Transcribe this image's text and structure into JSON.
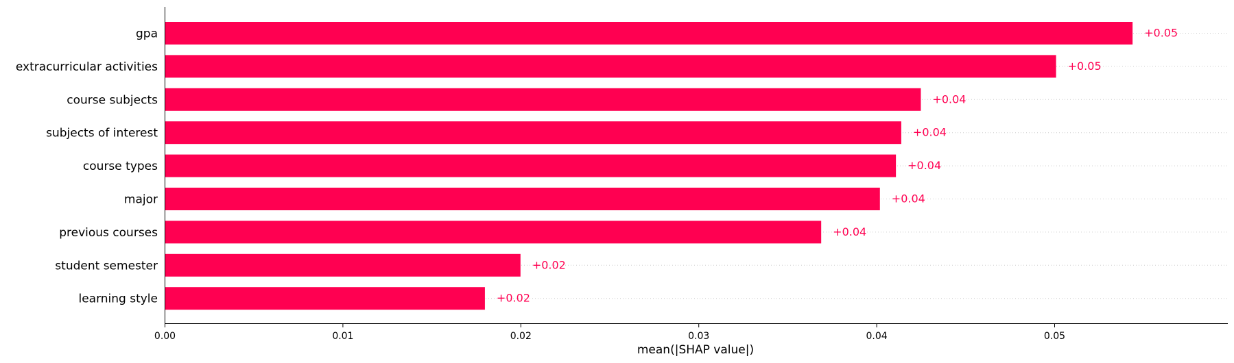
{
  "chart_data": {
    "type": "bar",
    "orientation": "horizontal",
    "categories": [
      "gpa",
      "extracurricular activities",
      "course subjects",
      "subjects of interest",
      "course types",
      "major",
      "previous courses",
      "student semester",
      "learning style"
    ],
    "values": [
      0.0544,
      0.0501,
      0.0425,
      0.0414,
      0.0411,
      0.0402,
      0.0369,
      0.02,
      0.018
    ],
    "value_labels": [
      "+0.05",
      "+0.05",
      "+0.04",
      "+0.04",
      "+0.04",
      "+0.04",
      "+0.04",
      "+0.02",
      "+0.02"
    ],
    "xlabel": "mean(|SHAP value|)",
    "ylabel": "",
    "xlim": [
      0,
      0.06
    ],
    "xticks": [
      0.0,
      0.01,
      0.02,
      0.03,
      0.04,
      0.05
    ],
    "xtick_labels": [
      "0.00",
      "0.01",
      "0.02",
      "0.03",
      "0.04",
      "0.05"
    ],
    "grid": "dotted horizontal lines per bar",
    "bar_color": "#ff0051",
    "label_color": "#ff0051"
  }
}
